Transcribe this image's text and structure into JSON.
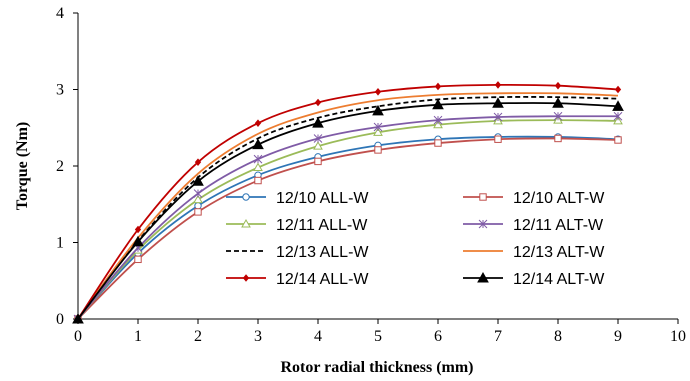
{
  "chart_data": {
    "type": "line",
    "title": "",
    "xlabel": "Rotor radial thickness (mm)",
    "ylabel": "Torque (Nm)",
    "xlim": [
      0,
      10
    ],
    "ylim": [
      0,
      4
    ],
    "x_ticks": [
      "0",
      "1",
      "2",
      "3",
      "4",
      "5",
      "6",
      "7",
      "8",
      "9",
      "10"
    ],
    "y_ticks": [
      "0",
      "1",
      "2",
      "3",
      "4"
    ],
    "grid": false,
    "legend_position": "bottom-right, two columns",
    "x": [
      0,
      1,
      2,
      3,
      4,
      5,
      6,
      7,
      8,
      9
    ],
    "series": [
      {
        "name": "12/10 ALL-W",
        "color": "#2E75B6",
        "marker": "circle-open",
        "dashed": false,
        "values": [
          0,
          0.86,
          1.48,
          1.88,
          2.12,
          2.27,
          2.35,
          2.38,
          2.38,
          2.35
        ]
      },
      {
        "name": "12/10 ALT-W",
        "color": "#C0504D",
        "marker": "square-open",
        "dashed": false,
        "values": [
          0,
          0.78,
          1.4,
          1.81,
          2.06,
          2.21,
          2.3,
          2.35,
          2.36,
          2.34
        ]
      },
      {
        "name": "12/11 ALL-W",
        "color": "#9BBB59",
        "marker": "triangle-open",
        "dashed": false,
        "values": [
          0,
          0.9,
          1.56,
          1.98,
          2.26,
          2.44,
          2.54,
          2.59,
          2.6,
          2.59
        ]
      },
      {
        "name": "12/11 ALT-W",
        "color": "#7F5BA6",
        "marker": "asterisk",
        "dashed": false,
        "values": [
          0,
          0.93,
          1.64,
          2.09,
          2.36,
          2.51,
          2.6,
          2.64,
          2.65,
          2.65
        ]
      },
      {
        "name": "12/13 ALL-W",
        "color": "#000000",
        "marker": "none",
        "dashed": true,
        "values": [
          0,
          1.02,
          1.85,
          2.36,
          2.63,
          2.78,
          2.87,
          2.9,
          2.9,
          2.88
        ]
      },
      {
        "name": "12/13 ALT-W",
        "color": "#ED7D31",
        "marker": "none",
        "dashed": false,
        "values": [
          0,
          1.06,
          1.9,
          2.42,
          2.7,
          2.86,
          2.93,
          2.95,
          2.95,
          2.92
        ]
      },
      {
        "name": "12/14 ALL-W",
        "color": "#C00000",
        "marker": "diamond-filled",
        "dashed": false,
        "values": [
          0,
          1.17,
          2.05,
          2.56,
          2.83,
          2.97,
          3.04,
          3.06,
          3.05,
          3.0
        ]
      },
      {
        "name": "12/14 ALT-W",
        "color": "#000000",
        "marker": "triangle-filled",
        "dashed": false,
        "values": [
          0,
          1.01,
          1.8,
          2.28,
          2.56,
          2.72,
          2.8,
          2.82,
          2.82,
          2.78
        ]
      }
    ]
  }
}
